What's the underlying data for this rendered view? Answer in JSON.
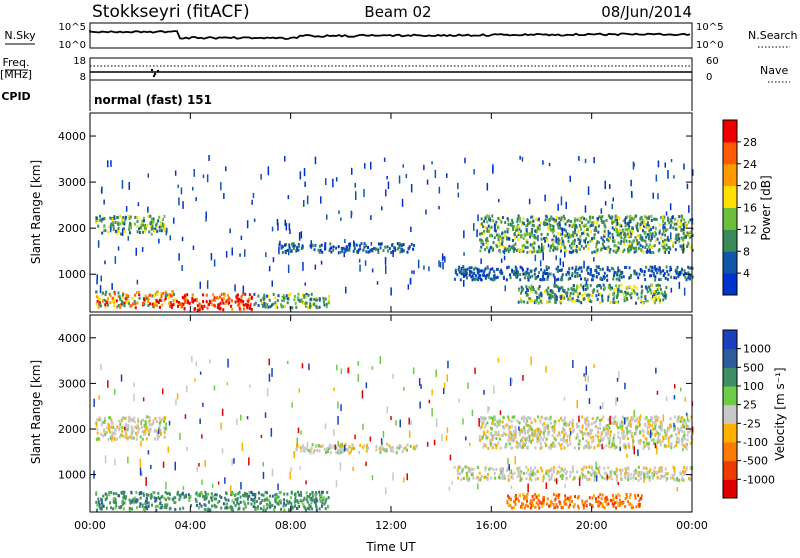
{
  "header": {
    "station": "Stokkseyri (fitACF)",
    "beam": "Beam 02",
    "date": "08/Jun/2014"
  },
  "top_panels": {
    "nsky": {
      "label": "N.Sky",
      "tick_top": "10^5",
      "tick_bottom": "10^0"
    },
    "nsearch": {
      "label": "N.Search",
      "tick_top": "10^5",
      "tick_bottom": "10^0"
    },
    "freq": {
      "label_line1": "Freq.",
      "label_line2": "[MHz]",
      "tick_top": "18",
      "tick_bottom": "8"
    },
    "nave": {
      "label": "Nave",
      "tick_top": "60",
      "tick_bottom": "0"
    },
    "cpid": {
      "label": "CPID",
      "value": "normal (fast) 151"
    }
  },
  "colors": {
    "power": [
      "#0033cc",
      "#1155aa",
      "#3a8a5a",
      "#6cbf3a",
      "#ffe000",
      "#ff9a00",
      "#ff5a00",
      "#ee0000"
    ],
    "velocity": [
      "#1a3fbf",
      "#2e5b9a",
      "#3e8f63",
      "#6ecb45",
      "#c8c8c8",
      "#ffb000",
      "#ff7a00",
      "#f03a00",
      "#e00000"
    ]
  },
  "chart_data": [
    {
      "type": "heatmap",
      "name": "power",
      "ylabel": "Slant Range [km]",
      "xlabel": "Time UT",
      "x_ticks": [
        "00:00",
        "04:00",
        "08:00",
        "12:00",
        "16:00",
        "20:00",
        "00:00"
      ],
      "y_ticks": [
        "1000",
        "2000",
        "3000",
        "4000"
      ],
      "x_range_hours": [
        0,
        24
      ],
      "y_range_km": [
        180,
        4500
      ],
      "colorbar": {
        "label": "Power [dB]",
        "ticks": [
          "4",
          "8",
          "12",
          "16",
          "20",
          "24",
          "28"
        ],
        "range": [
          0,
          30
        ]
      },
      "features": [
        {
          "t": [
            0.2,
            3.0
          ],
          "r": [
            1900,
            2300
          ],
          "level": "mid"
        },
        {
          "t": [
            0.2,
            3.5
          ],
          "r": [
            300,
            650
          ],
          "level": "high"
        },
        {
          "t": [
            3.5,
            6.5
          ],
          "r": [
            250,
            600
          ],
          "level": "very-high"
        },
        {
          "t": [
            6.5,
            9.5
          ],
          "r": [
            300,
            600
          ],
          "level": "mid"
        },
        {
          "t": [
            7.5,
            13.0
          ],
          "r": [
            1500,
            1700
          ],
          "level": "low"
        },
        {
          "t": [
            15.5,
            24.0
          ],
          "r": [
            1500,
            2300
          ],
          "level": "mid"
        },
        {
          "t": [
            14.5,
            24.0
          ],
          "r": [
            900,
            1200
          ],
          "level": "low"
        },
        {
          "t": [
            17.0,
            23.0
          ],
          "r": [
            400,
            800
          ],
          "level": "mid"
        }
      ]
    },
    {
      "type": "heatmap",
      "name": "velocity",
      "ylabel": "Slant Range [km]",
      "xlabel": "Time UT",
      "x_ticks": [
        "00:00",
        "04:00",
        "08:00",
        "12:00",
        "16:00",
        "20:00",
        "00:00"
      ],
      "y_ticks": [
        "1000",
        "2000",
        "3000",
        "4000"
      ],
      "x_range_hours": [
        0,
        24
      ],
      "y_range_km": [
        180,
        4500
      ],
      "colorbar": {
        "label": "Velocity [m s⁻¹]",
        "ticks": [
          "1000",
          "500",
          "100",
          "25",
          "-25",
          "-100",
          "-500",
          "-1000"
        ]
      },
      "features": [
        {
          "t": [
            0.2,
            3.0
          ],
          "r": [
            1800,
            2300
          ],
          "velocity": "near-zero"
        },
        {
          "t": [
            0.2,
            9.5
          ],
          "r": [
            250,
            650
          ],
          "velocity": "toward (+100)"
        },
        {
          "t": [
            8.0,
            13.0
          ],
          "r": [
            1500,
            1700
          ],
          "velocity": "near-zero"
        },
        {
          "t": [
            15.5,
            24.0
          ],
          "r": [
            1600,
            2300
          ],
          "velocity": "near-zero"
        },
        {
          "t": [
            14.5,
            24.0
          ],
          "r": [
            900,
            1200
          ],
          "velocity": "near-zero"
        },
        {
          "t": [
            16.5,
            22.0
          ],
          "r": [
            300,
            600
          ],
          "velocity": "away (-100)"
        }
      ]
    }
  ]
}
